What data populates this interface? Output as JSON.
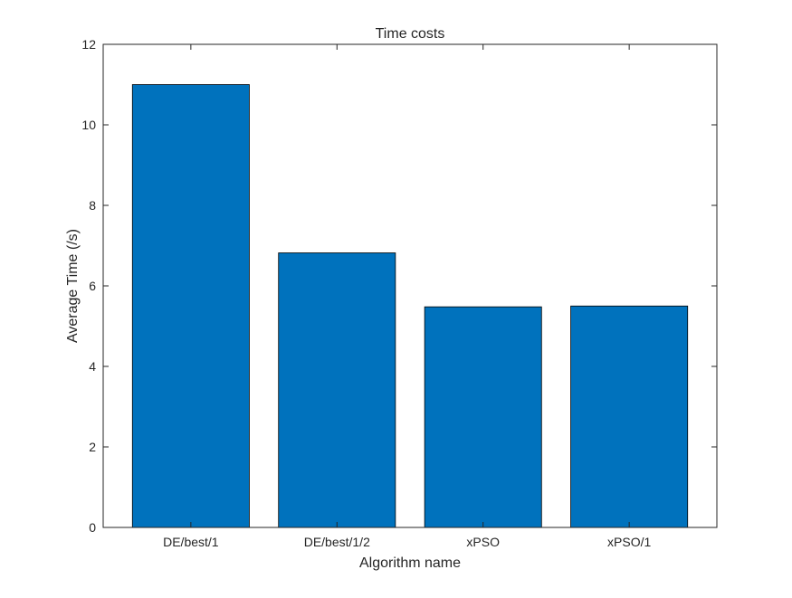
{
  "chart_data": {
    "type": "bar",
    "title": "Time costs",
    "xlabel": "Algorithm name",
    "ylabel": "Average Time (/s)",
    "categories": [
      "DE/best/1",
      "DE/best/1/2",
      "xPSO",
      "xPSO/1"
    ],
    "values": [
      11.0,
      6.82,
      5.48,
      5.5
    ],
    "ylim": [
      0,
      12
    ],
    "yticks": [
      0,
      2,
      4,
      6,
      8,
      10,
      12
    ],
    "ytick_labels": [
      "0",
      "2",
      "4",
      "6",
      "8",
      "10",
      "12"
    ],
    "xlim": [
      0.4,
      4.6
    ],
    "grid": false,
    "legend": "none",
    "bar_color": "#0072BD",
    "edge_color": "#000000",
    "axis_color": "#262626"
  }
}
